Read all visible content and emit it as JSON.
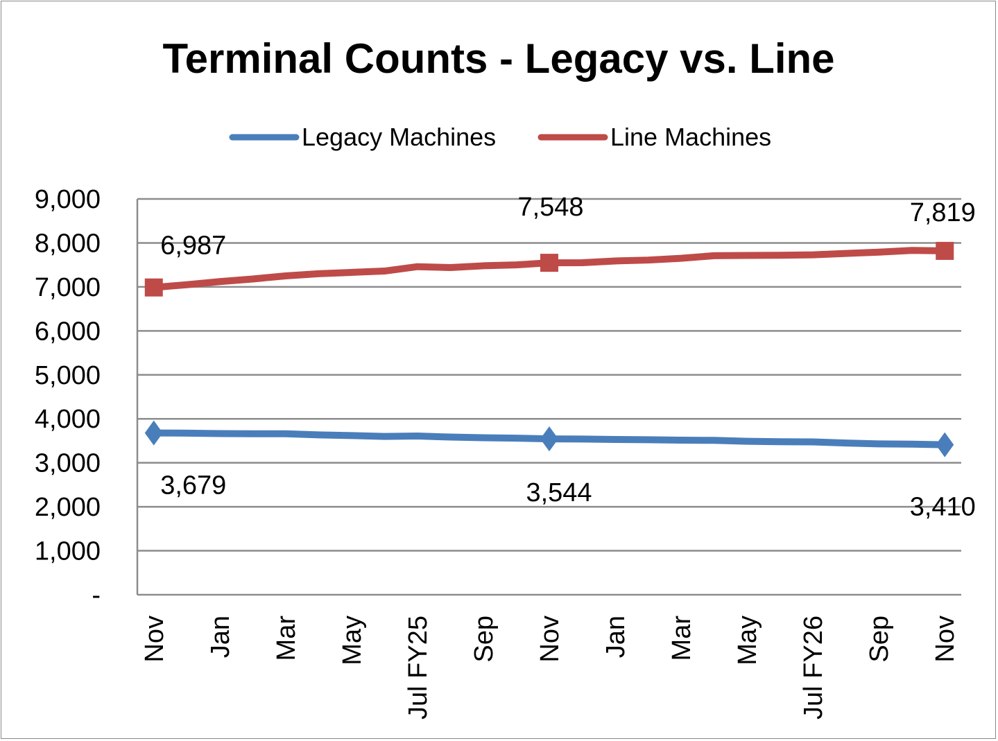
{
  "chart_data": {
    "type": "line",
    "title": "Terminal Counts - Legacy vs. Line",
    "xlabel": "",
    "ylabel": "",
    "ylim": [
      0,
      9000
    ],
    "yticks": [
      0,
      1000,
      2000,
      3000,
      4000,
      5000,
      6000,
      7000,
      8000,
      9000
    ],
    "ytick_labels": [
      "-",
      "1,000",
      "2,000",
      "3,000",
      "4,000",
      "5,000",
      "6,000",
      "7,000",
      "8,000",
      "9,000"
    ],
    "x_tick_labels": [
      "Nov",
      "Jan",
      "Mar",
      "May",
      "Jul FY25",
      "Sep",
      "Nov",
      "Jan",
      "Mar",
      "May",
      "Jul FY26",
      "Sep",
      "Nov"
    ],
    "x_tick_every": 2,
    "n_points": 25,
    "grid": true,
    "legend": "top",
    "series": [
      {
        "name": "Legacy Machines",
        "color": "#4a7ebb",
        "marker": "diamond",
        "values": [
          3679,
          3675,
          3665,
          3660,
          3660,
          3635,
          3620,
          3600,
          3610,
          3585,
          3570,
          3560,
          3544,
          3540,
          3530,
          3525,
          3515,
          3510,
          3490,
          3480,
          3475,
          3450,
          3430,
          3425,
          3410
        ],
        "labels": [
          {
            "index": 0,
            "text": "3,679"
          },
          {
            "index": 12,
            "text": "3,544"
          },
          {
            "index": 24,
            "text": "3,410"
          }
        ]
      },
      {
        "name": "Line Machines",
        "color": "#be4b48",
        "marker": "square",
        "values": [
          6987,
          7050,
          7120,
          7180,
          7250,
          7300,
          7330,
          7360,
          7460,
          7440,
          7480,
          7500,
          7548,
          7550,
          7590,
          7610,
          7650,
          7710,
          7715,
          7720,
          7730,
          7760,
          7790,
          7830,
          7819
        ],
        "labels": [
          {
            "index": 0,
            "text": "6,987"
          },
          {
            "index": 12,
            "text": "7,548"
          },
          {
            "index": 24,
            "text": "7,819"
          }
        ]
      }
    ]
  }
}
